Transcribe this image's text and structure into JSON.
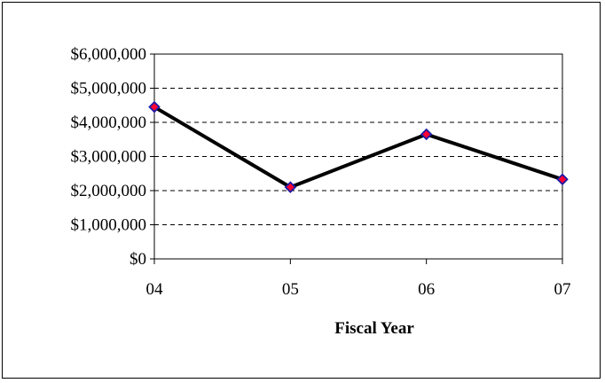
{
  "chart_data": {
    "type": "line",
    "title": "",
    "xlabel": "Fiscal Year",
    "ylabel": "",
    "categories": [
      "04",
      "05",
      "06",
      "07"
    ],
    "series": [
      {
        "values": [
          4450000,
          2100000,
          3650000,
          2330000
        ]
      }
    ],
    "ylim": [
      0,
      6000000
    ],
    "yticks": [
      0,
      1000000,
      2000000,
      3000000,
      4000000,
      5000000,
      6000000
    ],
    "ytick_labels": [
      "$0",
      "$1,000,000",
      "$2,000,000",
      "$3,000,000",
      "$4,000,000",
      "$5,000,000",
      "$6,000,000"
    ],
    "grid": "horizontal dashed",
    "legend": "none",
    "colors": {
      "line": "#000000",
      "marker_fill": "#ff0033",
      "marker_edge": "#1a1aa6",
      "grid": "#000000"
    }
  }
}
